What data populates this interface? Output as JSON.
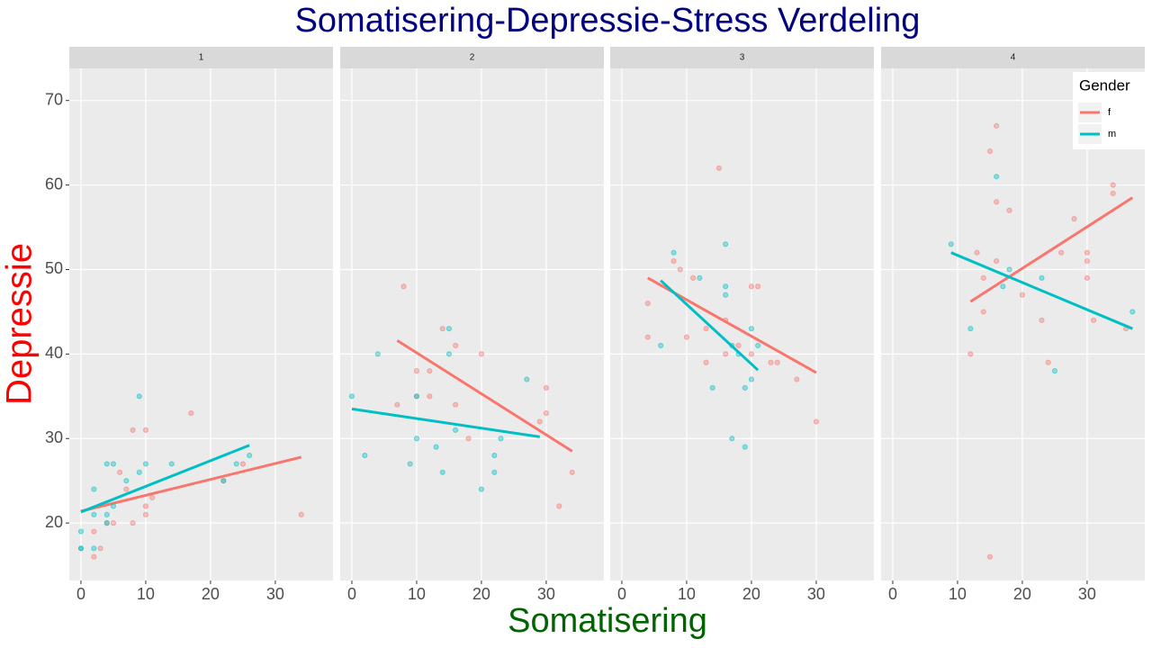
{
  "title": "Somatisering-Depressie-Stress Verdeling",
  "x_label": "Somatisering",
  "y_label": "Depressie",
  "legend_title": "Gender",
  "chart_data": [
    {
      "type": "scatter",
      "title": "1",
      "xlim": [
        -1.8,
        38.9
      ],
      "ylim": [
        13.2,
        73.8
      ],
      "xticks": [
        0,
        10,
        20,
        30
      ],
      "yticks": [
        20,
        30,
        40,
        50,
        60,
        70
      ],
      "grid": true,
      "series": [
        {
          "name": "f",
          "color": "#F8766D",
          "x": [
            2,
            2,
            3,
            5,
            6,
            7,
            8,
            8,
            10,
            10,
            10,
            11,
            17,
            34,
            25,
            22,
            4
          ],
          "values": [
            16,
            19,
            17,
            20,
            26,
            24,
            20,
            31,
            31,
            22,
            21,
            23,
            33,
            21,
            27,
            25,
            20
          ],
          "trend": {
            "x": [
              0,
              34
            ],
            "values": [
              21.4,
              27.8
            ]
          }
        },
        {
          "name": "m",
          "color": "#00BFC4",
          "x": [
            0,
            0,
            0,
            2,
            2,
            2,
            4,
            4,
            4,
            5,
            7,
            9,
            9,
            10,
            14,
            22,
            24,
            26,
            5
          ],
          "values": [
            19,
            17,
            17,
            24,
            21,
            17,
            27,
            21,
            20,
            27,
            25,
            35,
            26,
            27,
            27,
            25,
            27,
            28,
            22
          ],
          "trend": {
            "x": [
              0,
              26
            ],
            "values": [
              21.3,
              29.2
            ]
          }
        }
      ]
    },
    {
      "type": "scatter",
      "title": "2",
      "xlim": [
        -1.8,
        38.9
      ],
      "ylim": [
        13.2,
        73.8
      ],
      "xticks": [
        0,
        10,
        20,
        30
      ],
      "yticks": [
        20,
        30,
        40,
        50,
        60,
        70
      ],
      "grid": true,
      "series": [
        {
          "name": "f",
          "color": "#F8766D",
          "x": [
            8,
            7,
            10,
            10,
            12,
            12,
            14,
            16,
            16,
            18,
            20,
            29,
            30,
            30,
            32,
            34
          ],
          "values": [
            48,
            34,
            38,
            35,
            38,
            35,
            43,
            41,
            34,
            30,
            40,
            32,
            36,
            33,
            22,
            26
          ],
          "trend": {
            "x": [
              7,
              34
            ],
            "values": [
              41.6,
              28.5
            ]
          }
        },
        {
          "name": "m",
          "color": "#00BFC4",
          "x": [
            0,
            2,
            4,
            9,
            10,
            10,
            13,
            14,
            15,
            15,
            16,
            20,
            22,
            22,
            23,
            27
          ],
          "values": [
            35,
            28,
            40,
            27,
            35,
            30,
            29,
            26,
            43,
            40,
            31,
            24,
            28,
            26,
            30,
            37
          ],
          "trend": {
            "x": [
              0,
              29
            ],
            "values": [
              33.5,
              30.2
            ]
          }
        }
      ]
    },
    {
      "type": "scatter",
      "title": "3",
      "xlim": [
        -1.8,
        38.9
      ],
      "ylim": [
        13.2,
        73.8
      ],
      "xticks": [
        0,
        10,
        20,
        30
      ],
      "yticks": [
        20,
        30,
        40,
        50,
        60,
        70
      ],
      "grid": true,
      "series": [
        {
          "name": "f",
          "color": "#F8766D",
          "x": [
            4,
            4,
            8,
            9,
            10,
            11,
            13,
            13,
            15,
            16,
            16,
            18,
            20,
            20,
            21,
            23,
            24,
            27,
            30
          ],
          "values": [
            46,
            42,
            51,
            50,
            42,
            49,
            43,
            39,
            62,
            44,
            40,
            41,
            48,
            40,
            48,
            39,
            39,
            37,
            32
          ],
          "trend": {
            "x": [
              4,
              30
            ],
            "values": [
              49,
              37.8
            ]
          }
        },
        {
          "name": "m",
          "color": "#00BFC4",
          "x": [
            6,
            8,
            12,
            14,
            16,
            16,
            16,
            17,
            17,
            18,
            19,
            19,
            20,
            20,
            21
          ],
          "values": [
            41,
            52,
            49,
            36,
            53,
            48,
            47,
            41,
            30,
            40,
            36,
            29,
            43,
            37,
            41
          ],
          "trend": {
            "x": [
              6,
              21
            ],
            "values": [
              48.7,
              38.1
            ]
          }
        }
      ]
    },
    {
      "type": "scatter",
      "title": "4",
      "xlim": [
        -1.8,
        38.9
      ],
      "ylim": [
        13.2,
        73.8
      ],
      "xticks": [
        0,
        10,
        20,
        30
      ],
      "yticks": [
        20,
        30,
        40,
        50,
        60,
        70
      ],
      "grid": true,
      "series": [
        {
          "name": "f",
          "color": "#F8766D",
          "x": [
            12,
            13,
            14,
            14,
            15,
            15,
            16,
            16,
            16,
            18,
            20,
            23,
            24,
            26,
            28,
            30,
            30,
            30,
            31,
            34,
            34,
            36
          ],
          "values": [
            40,
            52,
            49,
            45,
            64,
            16,
            67,
            58,
            51,
            57,
            47,
            44,
            39,
            52,
            56,
            52,
            51,
            49,
            44,
            60,
            59,
            43
          ],
          "trend": {
            "x": [
              12,
              37
            ],
            "values": [
              46.2,
              58.5
            ]
          }
        },
        {
          "name": "m",
          "color": "#00BFC4",
          "x": [
            9,
            12,
            16,
            18,
            23,
            25,
            37,
            17
          ],
          "values": [
            53,
            43,
            61,
            50,
            49,
            38,
            45,
            48
          ],
          "trend": {
            "x": [
              9,
              37
            ],
            "values": [
              52,
              43
            ]
          }
        }
      ]
    }
  ]
}
